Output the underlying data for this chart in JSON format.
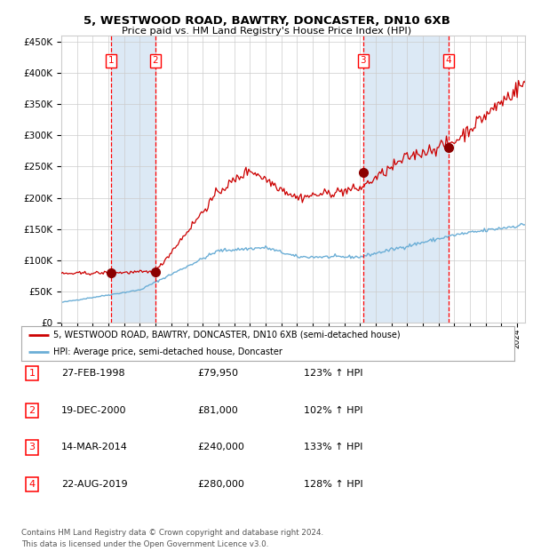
{
  "title1": "5, WESTWOOD ROAD, BAWTRY, DONCASTER, DN10 6XB",
  "title2": "Price paid vs. HM Land Registry's House Price Index (HPI)",
  "legend_line1": "5, WESTWOOD ROAD, BAWTRY, DONCASTER, DN10 6XB (semi-detached house)",
  "legend_line2": "HPI: Average price, semi-detached house, Doncaster",
  "footer": "Contains HM Land Registry data © Crown copyright and database right 2024.\nThis data is licensed under the Open Government Licence v3.0.",
  "sale_dates_num": [
    1998.15,
    2000.97,
    2014.2,
    2019.64
  ],
  "sale_prices": [
    79950,
    81000,
    240000,
    280000
  ],
  "sale_labels": [
    "1",
    "2",
    "3",
    "4"
  ],
  "sale_table": [
    [
      "1",
      "27-FEB-1998",
      "£79,950",
      "123% ↑ HPI"
    ],
    [
      "2",
      "19-DEC-2000",
      "£81,000",
      "102% ↑ HPI"
    ],
    [
      "3",
      "14-MAR-2014",
      "£240,000",
      "133% ↑ HPI"
    ],
    [
      "4",
      "22-AUG-2019",
      "£280,000",
      "128% ↑ HPI"
    ]
  ],
  "hpi_color": "#6baed6",
  "price_color": "#cc0000",
  "marker_color": "#8b0000",
  "bg_color": "#ffffff",
  "shade_color": "#dce9f5",
  "grid_color": "#cccccc",
  "ylim": [
    0,
    460000
  ],
  "xlim_start": 1995.0,
  "xlim_end": 2024.5
}
